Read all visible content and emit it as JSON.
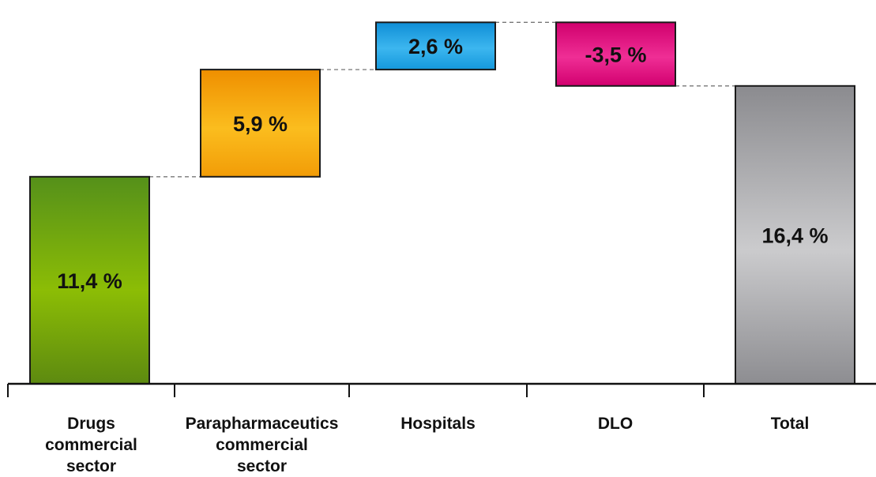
{
  "chart_data": {
    "type": "waterfall",
    "title": "",
    "xlabel": "",
    "ylabel": "",
    "ylim": [
      0,
      19.5
    ],
    "grid": false,
    "categories": [
      [
        "Drugs",
        "commercial",
        "sector"
      ],
      [
        "Parapharmaceutics",
        "commercial",
        "sector"
      ],
      [
        "Hospitals"
      ],
      [
        "DLO"
      ],
      [
        "Total"
      ]
    ],
    "values": [
      11.4,
      5.9,
      2.6,
      -3.5,
      16.4
    ],
    "value_labels": [
      "11,4 %",
      "5,9 %",
      "2,6 %",
      "-3,5 %",
      "16,4 %"
    ],
    "kinds": [
      "start",
      "delta",
      "delta",
      "delta",
      "total"
    ],
    "colors": [
      "#7aa80c",
      "#f5a20e",
      "#1ea4e3",
      "#e0107e",
      "#b3b3b5"
    ]
  }
}
